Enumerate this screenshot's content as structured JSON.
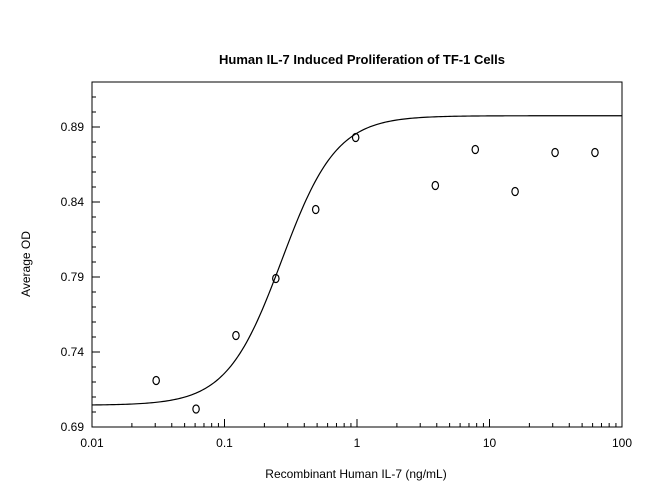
{
  "chart_data": {
    "type": "scatter",
    "title": "Human IL-7 Induced Proliferation of TF-1 Cells",
    "xlabel": "Recombinant Human IL-7 (ng/mL)",
    "ylabel": "Average OD",
    "x_scale": "log",
    "xlim": [
      0.01,
      100
    ],
    "ylim": [
      0.69,
      0.92
    ],
    "x_ticks": [
      0.01,
      0.1,
      1,
      10,
      100
    ],
    "x_tick_labels": [
      "0.01",
      "0.1",
      "1",
      "10",
      "100"
    ],
    "y_ticks": [
      0.69,
      0.74,
      0.79,
      0.84,
      0.89
    ],
    "y_tick_labels": [
      "0.69",
      "0.74",
      "0.79",
      "0.84",
      "0.89"
    ],
    "grid": false,
    "series": [
      {
        "type": "scatter",
        "marker": "open-circle",
        "x": [
          0.0305,
          0.061,
          0.122,
          0.244,
          0.488,
          0.977,
          3.9,
          7.81,
          15.6,
          31.25,
          62.5
        ],
        "y": [
          0.721,
          0.702,
          0.751,
          0.789,
          0.835,
          0.883,
          0.851,
          0.875,
          0.847,
          0.873,
          0.873
        ]
      },
      {
        "type": "line",
        "fit": "4PL",
        "bottom": 0.7045,
        "top": 0.8975,
        "ec50": 0.27,
        "hill": 2.1,
        "x_range": [
          0.01,
          100
        ]
      }
    ],
    "colors": {
      "points": "#000000",
      "fit": "#000000",
      "axes": "#000000"
    }
  }
}
